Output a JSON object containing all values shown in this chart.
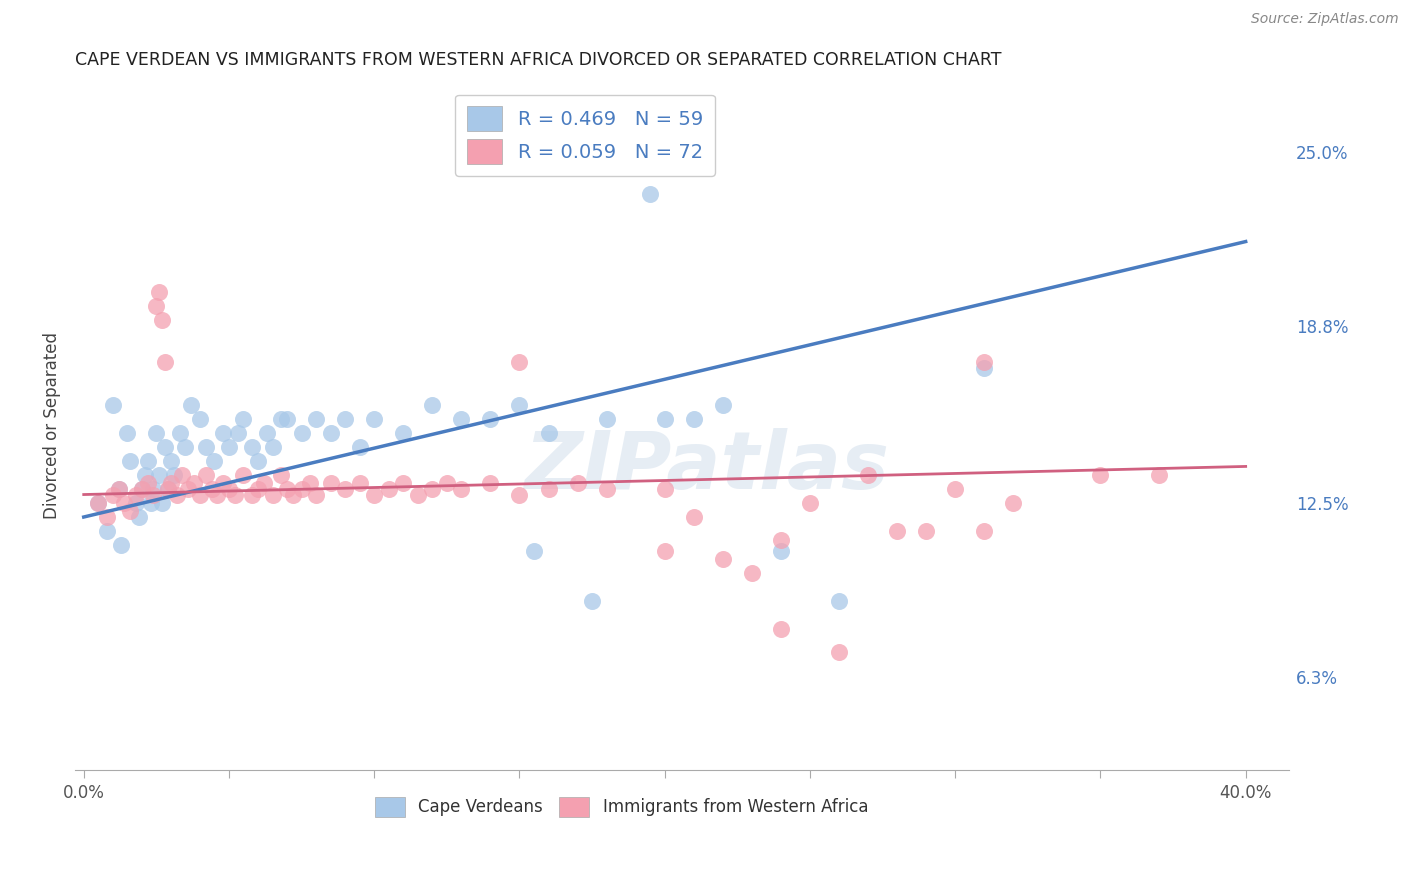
{
  "title": "CAPE VERDEAN VS IMMIGRANTS FROM WESTERN AFRICA DIVORCED OR SEPARATED CORRELATION CHART",
  "source": "Source: ZipAtlas.com",
  "ylabel": "Divorced or Separated",
  "ytick_labels": [
    "25.0%",
    "18.8%",
    "12.5%",
    "6.3%"
  ],
  "ytick_values": [
    0.25,
    0.188,
    0.125,
    0.063
  ],
  "xlim": [
    -0.003,
    0.415
  ],
  "ylim": [
    0.03,
    0.275
  ],
  "blue_R": 0.469,
  "blue_N": 59,
  "pink_R": 0.059,
  "pink_N": 72,
  "blue_color": "#a8c8e8",
  "pink_color": "#f4a0b0",
  "blue_line_color": "#4a7cc0",
  "pink_line_color": "#d06080",
  "watermark": "ZIPatlas",
  "background_color": "#ffffff",
  "grid_color": "#cccccc",
  "blue_line_x0": 0.0,
  "blue_line_y0": 0.12,
  "blue_line_x1": 0.4,
  "blue_line_y1": 0.218,
  "pink_line_x0": 0.0,
  "pink_line_y0": 0.128,
  "pink_line_x1": 0.4,
  "pink_line_y1": 0.138,
  "blue_scatter_x": [
    0.005,
    0.008,
    0.01,
    0.012,
    0.013,
    0.015,
    0.016,
    0.018,
    0.019,
    0.02,
    0.021,
    0.022,
    0.023,
    0.024,
    0.025,
    0.026,
    0.027,
    0.028,
    0.029,
    0.03,
    0.031,
    0.033,
    0.035,
    0.037,
    0.04,
    0.042,
    0.045,
    0.048,
    0.05,
    0.053,
    0.055,
    0.058,
    0.06,
    0.063,
    0.065,
    0.068,
    0.07,
    0.075,
    0.08,
    0.085,
    0.09,
    0.095,
    0.1,
    0.11,
    0.12,
    0.13,
    0.14,
    0.15,
    0.16,
    0.18,
    0.2,
    0.21,
    0.22,
    0.24,
    0.155,
    0.175,
    0.26,
    0.31,
    0.195
  ],
  "blue_scatter_y": [
    0.125,
    0.115,
    0.16,
    0.13,
    0.11,
    0.15,
    0.14,
    0.125,
    0.12,
    0.13,
    0.135,
    0.14,
    0.125,
    0.13,
    0.15,
    0.135,
    0.125,
    0.145,
    0.13,
    0.14,
    0.135,
    0.15,
    0.145,
    0.16,
    0.155,
    0.145,
    0.14,
    0.15,
    0.145,
    0.15,
    0.155,
    0.145,
    0.14,
    0.15,
    0.145,
    0.155,
    0.155,
    0.15,
    0.155,
    0.15,
    0.155,
    0.145,
    0.155,
    0.15,
    0.16,
    0.155,
    0.155,
    0.16,
    0.15,
    0.155,
    0.155,
    0.155,
    0.16,
    0.108,
    0.108,
    0.09,
    0.09,
    0.173,
    0.235
  ],
  "pink_scatter_x": [
    0.005,
    0.008,
    0.01,
    0.012,
    0.014,
    0.016,
    0.018,
    0.02,
    0.022,
    0.024,
    0.025,
    0.026,
    0.027,
    0.028,
    0.029,
    0.03,
    0.032,
    0.034,
    0.036,
    0.038,
    0.04,
    0.042,
    0.044,
    0.046,
    0.048,
    0.05,
    0.052,
    0.055,
    0.058,
    0.06,
    0.062,
    0.065,
    0.068,
    0.07,
    0.072,
    0.075,
    0.078,
    0.08,
    0.085,
    0.09,
    0.095,
    0.1,
    0.105,
    0.11,
    0.115,
    0.12,
    0.125,
    0.13,
    0.14,
    0.15,
    0.16,
    0.17,
    0.18,
    0.2,
    0.21,
    0.22,
    0.23,
    0.24,
    0.25,
    0.15,
    0.27,
    0.29,
    0.3,
    0.31,
    0.32,
    0.35,
    0.37,
    0.28,
    0.26,
    0.31,
    0.2,
    0.24
  ],
  "pink_scatter_y": [
    0.125,
    0.12,
    0.128,
    0.13,
    0.125,
    0.122,
    0.128,
    0.13,
    0.132,
    0.128,
    0.195,
    0.2,
    0.19,
    0.175,
    0.13,
    0.132,
    0.128,
    0.135,
    0.13,
    0.132,
    0.128,
    0.135,
    0.13,
    0.128,
    0.132,
    0.13,
    0.128,
    0.135,
    0.128,
    0.13,
    0.132,
    0.128,
    0.135,
    0.13,
    0.128,
    0.13,
    0.132,
    0.128,
    0.132,
    0.13,
    0.132,
    0.128,
    0.13,
    0.132,
    0.128,
    0.13,
    0.132,
    0.13,
    0.132,
    0.128,
    0.13,
    0.132,
    0.13,
    0.13,
    0.12,
    0.105,
    0.1,
    0.112,
    0.125,
    0.175,
    0.135,
    0.115,
    0.13,
    0.115,
    0.125,
    0.135,
    0.135,
    0.115,
    0.072,
    0.175,
    0.108,
    0.08
  ]
}
